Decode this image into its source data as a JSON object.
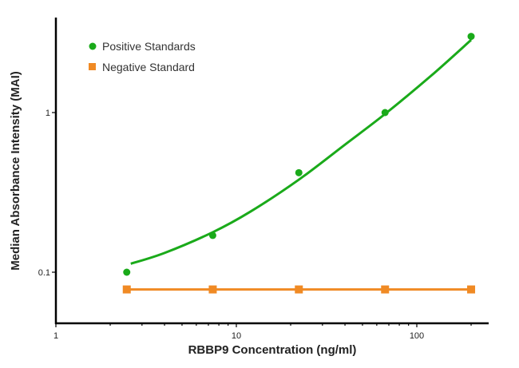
{
  "chart_data": {
    "type": "scatter",
    "title": "",
    "xlabel": "RBBP9 Concentration (ng/ml)",
    "ylabel": "Median Absorbance Intensity (MAI)",
    "xscale": "log",
    "yscale": "log",
    "xlim": [
      1,
      250
    ],
    "ylim": [
      0.048,
      3.9
    ],
    "x_ticks": [
      {
        "value": 1,
        "label": "1"
      },
      {
        "value": 10,
        "label": "10"
      },
      {
        "value": 100,
        "label": "100"
      }
    ],
    "y_ticks": [
      {
        "value": 0.1,
        "label": "0.1"
      },
      {
        "value": 1,
        "label": "1"
      }
    ],
    "grid": false,
    "legend_position": "top-left",
    "series": [
      {
        "name": "Positive Standards",
        "color": "#1aaa1a",
        "marker": "circle",
        "x": [
          2.47,
          7.4,
          22.2,
          66.7,
          200
        ],
        "y": [
          0.1,
          0.17,
          0.42,
          1.0,
          3.0
        ],
        "fit_curve": {
          "x": [
            2.6,
            4,
            7.4,
            12,
            22.2,
            40,
            66.7,
            120,
            200
          ],
          "y": [
            0.113,
            0.132,
            0.178,
            0.24,
            0.38,
            0.63,
            0.98,
            1.7,
            2.85
          ]
        }
      },
      {
        "name": "Negative Standard",
        "color": "#f08a24",
        "marker": "square",
        "x": [
          2.47,
          7.4,
          22.2,
          66.7,
          200
        ],
        "y": [
          0.078,
          0.078,
          0.078,
          0.078,
          0.078
        ],
        "connected": true
      }
    ]
  }
}
